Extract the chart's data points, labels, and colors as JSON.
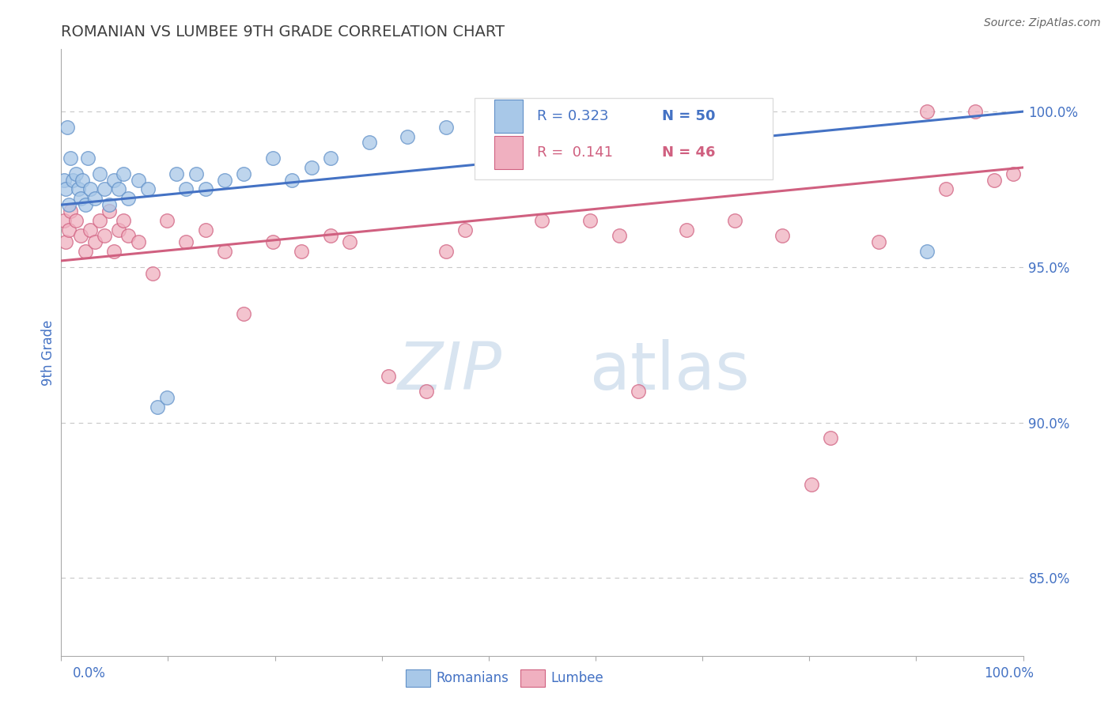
{
  "title": "ROMANIAN VS LUMBEE 9TH GRADE CORRELATION CHART",
  "source": "Source: ZipAtlas.com",
  "ylabel": "9th Grade",
  "r_romanian": 0.323,
  "n_romanian": 50,
  "r_lumbee": 0.141,
  "n_lumbee": 46,
  "xlim": [
    0.0,
    100.0
  ],
  "ylim": [
    82.5,
    102.0
  ],
  "yticks": [
    85.0,
    90.0,
    95.0,
    100.0
  ],
  "ytick_labels": [
    "85.0%",
    "90.0%",
    "95.0%",
    "100.0%"
  ],
  "background_color": "#ffffff",
  "grid_color": "#c8c8c8",
  "title_color": "#404040",
  "axis_label_color": "#4472c4",
  "romanian_color": "#a8c8e8",
  "lumbee_color": "#f0b0c0",
  "romanian_edge_color": "#6090c8",
  "lumbee_edge_color": "#d06080",
  "romanian_line_color": "#4472c4",
  "lumbee_line_color": "#d06080",
  "watermark_text_color": "#d8e4f0",
  "romanian_x": [
    0.3,
    0.5,
    0.6,
    0.8,
    1.0,
    1.2,
    1.5,
    1.8,
    2.0,
    2.2,
    2.5,
    2.8,
    3.0,
    3.5,
    4.0,
    4.5,
    5.0,
    5.5,
    6.0,
    6.5,
    7.0,
    8.0,
    9.0,
    10.0,
    11.0,
    12.0,
    13.0,
    14.0,
    15.0,
    17.0,
    19.0,
    22.0,
    24.0,
    26.0,
    28.0,
    32.0,
    36.0,
    40.0,
    44.0,
    48.0,
    50.0,
    53.0,
    56.0,
    58.0,
    60.0,
    62.0,
    65.0,
    68.0,
    72.0,
    90.0
  ],
  "romanian_y": [
    97.8,
    97.5,
    99.5,
    97.0,
    98.5,
    97.8,
    98.0,
    97.5,
    97.2,
    97.8,
    97.0,
    98.5,
    97.5,
    97.2,
    98.0,
    97.5,
    97.0,
    97.8,
    97.5,
    98.0,
    97.2,
    97.8,
    97.5,
    90.5,
    90.8,
    98.0,
    97.5,
    98.0,
    97.5,
    97.8,
    98.0,
    98.5,
    97.8,
    98.2,
    98.5,
    99.0,
    99.2,
    99.5,
    99.8,
    100.0,
    100.0,
    100.0,
    100.0,
    100.0,
    100.0,
    100.0,
    100.0,
    100.0,
    100.0,
    95.5
  ],
  "lumbee_x": [
    0.3,
    0.5,
    0.8,
    1.0,
    1.5,
    2.0,
    2.5,
    3.0,
    3.5,
    4.0,
    4.5,
    5.0,
    5.5,
    6.0,
    6.5,
    7.0,
    8.0,
    9.5,
    11.0,
    13.0,
    15.0,
    17.0,
    19.0,
    22.0,
    25.0,
    28.0,
    30.0,
    34.0,
    38.0,
    42.0,
    50.0,
    58.0,
    60.0,
    65.0,
    70.0,
    75.0,
    78.0,
    80.0,
    85.0,
    90.0,
    92.0,
    95.0,
    97.0,
    99.0,
    40.0,
    55.0
  ],
  "lumbee_y": [
    96.5,
    95.8,
    96.2,
    96.8,
    96.5,
    96.0,
    95.5,
    96.2,
    95.8,
    96.5,
    96.0,
    96.8,
    95.5,
    96.2,
    96.5,
    96.0,
    95.8,
    94.8,
    96.5,
    95.8,
    96.2,
    95.5,
    93.5,
    95.8,
    95.5,
    96.0,
    95.8,
    91.5,
    91.0,
    96.2,
    96.5,
    96.0,
    91.0,
    96.2,
    96.5,
    96.0,
    88.0,
    89.5,
    95.8,
    100.0,
    97.5,
    100.0,
    97.8,
    98.0,
    95.5,
    96.5
  ]
}
